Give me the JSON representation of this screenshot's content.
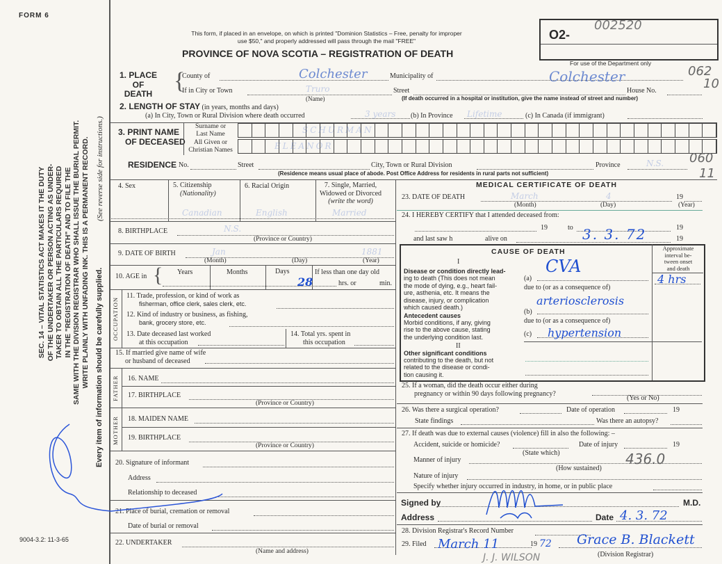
{
  "form_id": "FORM 6",
  "print_code": "9004-3.2: 11-3-65",
  "notice": [
    "This form, if placed in an envelope, on which is printed \"Dominion Statistics – Free, penalty for improper",
    "use $50,\" and properly addressed will pass through the mail \"FREE\""
  ],
  "title": "PROVINCE OF NOVA SCOTIA – REGISTRATION OF DEATH",
  "reg_prefix": "O2-",
  "reg_number": "002520",
  "dept_only": "For use of the Department only",
  "margin_text": [
    "SEC. 14 – VITAL STATISTICS ACT MAKES IT THE DUTY",
    "OF THE UNDERTAKER OR PERSON ACTING AS UNDER-",
    "TAKER TO OBTAIN ALL THE PARTICULARS REQUIRED",
    "IN THE \"REGISTRATION OF DEATH\" AND TO FILE THE",
    "SAME WITH THE DIVISION REGISTRAR WHO SHALL ISSUE THE BURIAL PERMIT.",
    "WRITE PLAINLY WITH UNFADING INK. THIS IS A PERMANENT RECORD."
  ],
  "margin_note": "Every item of information should be carefully supplied.",
  "margin_note2": "(See reverse side for instructions.)",
  "labels": {
    "place": "1. PLACE",
    "of": "OF",
    "death": "DEATH",
    "county": "County of",
    "municipality": "Municipality of",
    "city": "If in City or Town",
    "street": "Street",
    "house": "House No.",
    "name_hint": "(Name)",
    "hospital_hint": "(If death occurred in a hospital or institution, give the name instead of street and number)",
    "stay": "2. LENGTH OF STAY",
    "stay_hint": "(in years, months and days)",
    "stay_a": "(a) In City, Town or Rural Division where death occurred",
    "stay_b": "(b) In Province",
    "stay_c": "(c) In Canada (if immigrant)",
    "print_name": "3. PRINT NAME",
    "of_deceased": "OF DECEASED",
    "surname": "Surname or",
    "last_name": "Last Name",
    "given": "All Given or",
    "christian": "Christian Names",
    "residence": "RESIDENCE",
    "res_no": "No.",
    "res_street": "Street",
    "res_city": "City, Town or Rural Division",
    "res_province": "Province",
    "res_hint": "(Residence means usual place of abode. Post Office Address for residents in rural parts not sufficient)",
    "sex": "4. Sex",
    "citizenship": "5. Citizenship",
    "nationality": "(Nationality)",
    "racial": "6. Racial Origin",
    "marital": "7. Single, Married,",
    "marital2": "Widowed or Divorced",
    "marital3": "(write the word)",
    "birthplace": "8. BIRTHPLACE",
    "prov_country": "(Province or Country)",
    "dob": "9. DATE OF BIRTH",
    "month": "(Month)",
    "day": "(Day)",
    "year": "(Year)",
    "age": "10. AGE in",
    "years": "Years",
    "months": "Months",
    "days": "Days",
    "less_day": "If less than one day old",
    "hrs": "hrs. or",
    "min": "min.",
    "occupation": "OCCUPATION",
    "trade": "11. Trade, profession, or kind of work as",
    "trade2": "fisherman, office clerk, sales clerk, etc.",
    "industry": "12. Kind of industry or business, as fishing,",
    "industry2": "bank, grocery store, etc.",
    "last_worked": "13. Date deceased last worked",
    "last_worked2": "at this occupation",
    "total_yrs": "14. Total yrs. spent in",
    "total_yrs2": "this occupation",
    "spouse": "15. If married give name of wife",
    "spouse2": "or husband of deceased",
    "father": "FATHER",
    "mother": "MOTHER",
    "f_name": "16. NAME",
    "f_birth": "17. BIRTHPLACE",
    "m_maiden": "18. MAIDEN NAME",
    "m_birth": "19. BIRTHPLACE",
    "informant": "20. Signature of informant",
    "address": "Address",
    "relationship": "Relationship to deceased",
    "burial": "21. Place of burial, cremation or removal",
    "burial_date": "Date of burial or removal",
    "undertaker": "22. UNDERTAKER",
    "name_address": "(Name and address)",
    "medical": "MEDICAL CERTIFICATE OF DEATH",
    "dod": "23. DATE OF DEATH",
    "nineteen": "19",
    "certify": "24. I HEREBY CERTIFY that I attended deceased from:",
    "to": "to",
    "last_saw": "and last saw h",
    "alive_on": "alive on",
    "cause": "CAUSE OF DEATH",
    "roman1": "I",
    "roman2": "II",
    "interval": [
      "Approximate",
      "interval be-",
      "tween onset",
      "and death"
    ],
    "disease": [
      "Disease or condition directly lead-",
      "ing to death (This does not mean",
      "the mode of dying, e.g., heart fail-",
      "ure, asthenia, etc. It means the",
      "disease, injury, or complication",
      "which caused death.)"
    ],
    "antecedent": "Antecedent causes",
    "antecedent_txt": [
      "Morbid conditions, if any, giving",
      "rise to the above cause, stating",
      "the underlying condition last."
    ],
    "other": "Other significant conditions",
    "other_txt": [
      "contributing to the death, but not",
      "related to the disease or condi-",
      "tion causing it."
    ],
    "ca": "(a)",
    "cb": "(b)",
    "cc": "(c)",
    "due_to": "due to (or as a consequence of)",
    "woman": "25. If a woman, did the death occur either during",
    "woman2": "pregnancy or within 90 days following pregnancy?",
    "yes_no": "(Yes or No)",
    "surgery": "26. Was there a surgical operation?",
    "op_date": "Date of operation",
    "findings": "State findings",
    "autopsy": "Was there an autopsy?",
    "external": "27. If death was due to external causes (violence) fill in also the following: –",
    "accident": "Accident, suicide or homicide?",
    "state_which": "(State which)",
    "injury_date": "Date of injury",
    "manner": "Manner of injury",
    "how": "(How sustained)",
    "nature": "Nature of injury",
    "specify": "Specify whether injury occurred in industry, in home, or in public place",
    "signed": "Signed by",
    "md": "M.D.",
    "addr": "Address",
    "date": "Date",
    "record": "28. Division Registrar's Record Number",
    "filed": "29. Filed",
    "div_reg": "(Division Registrar)"
  },
  "values": {
    "county": "Colchester",
    "municipality": "Colchester",
    "code1": "062",
    "code2": "10",
    "city": "Truro",
    "stay_a": "3 years",
    "stay_b": "Lifetime",
    "surname": "SCHURMAN",
    "given": "ELEANOR",
    "res_province": "N.S.",
    "code3": "060",
    "code4": "11",
    "citizenship": "Canadian",
    "racial": "English",
    "marital": "Married",
    "birthplace": "N.S.",
    "dob_month": "Jan",
    "dob_year": "1881",
    "age_days": "28",
    "dod_month": "March",
    "dod_day": "4",
    "to_date": "3. 3. 72",
    "cause_a": "CVA",
    "interval_a": "4 hrs",
    "cause_b": "arteriosclerosis",
    "cause_c": "hypertension",
    "code5": "436.0",
    "signed_date": "4. 3. 72",
    "filed_date": "March 11",
    "filed_year": "72",
    "registrar_sig": "Grace B. Blackett",
    "stamp": "J. J. WILSON"
  }
}
